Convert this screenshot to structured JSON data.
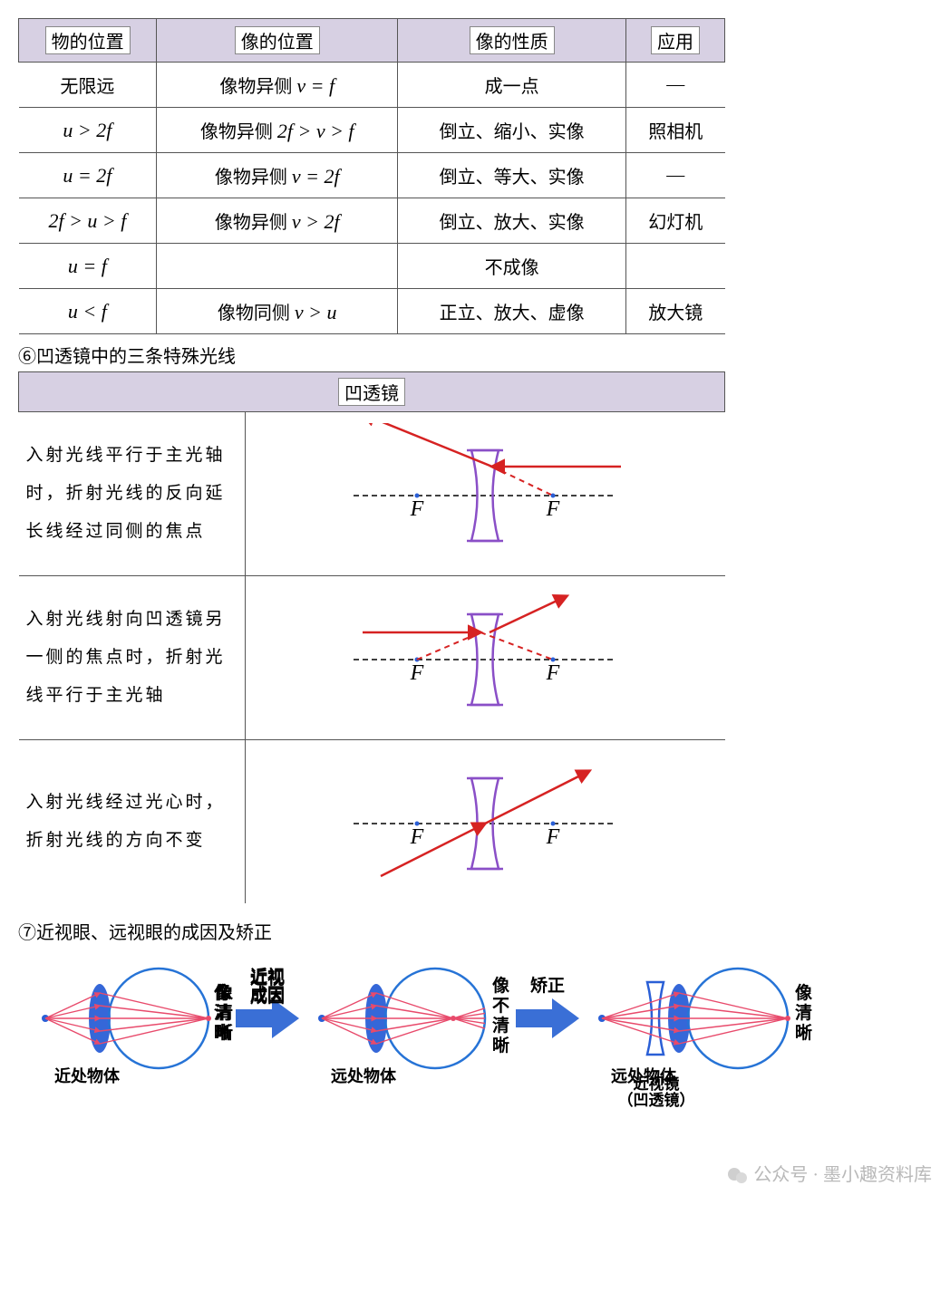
{
  "table1": {
    "headers": [
      "物的位置",
      "像的位置",
      "像的性质",
      "应用"
    ],
    "rows": [
      {
        "c1": "无限远",
        "c2_pre": "像物异侧 ",
        "c2_math": "v = f",
        "c3": "成一点",
        "c4": "—"
      },
      {
        "c1_math": "u > 2f",
        "c2_pre": "像物异侧 ",
        "c2_math": "2f > v > f",
        "c3": "倒立、缩小、实像",
        "c4": "照相机"
      },
      {
        "c1_math": "u = 2f",
        "c2_pre": "像物异侧 ",
        "c2_math": "v = 2f",
        "c3": "倒立、等大、实像",
        "c4": "—"
      },
      {
        "c1_math": "2f > u > f",
        "c2_pre": "像物异侧 ",
        "c2_math": "v > 2f",
        "c3": "倒立、放大、实像",
        "c4": "幻灯机"
      },
      {
        "c1_math": "u = f",
        "c2_pre": "",
        "c2_math": "",
        "c3": "不成像",
        "c4": ""
      },
      {
        "c1_math": "u < f",
        "c2_pre": "像物同侧 ",
        "c2_math": "v > u",
        "c3": "正立、放大、虚像",
        "c4": "放大镜"
      }
    ]
  },
  "sec6_label": "⑥凹透镜中的三条特殊光线",
  "table2": {
    "header": "凹透镜",
    "rows": [
      {
        "desc": "入射光线平行于主光轴时，折射光线的反向延长线经过同侧的焦点",
        "diag": "ray1"
      },
      {
        "desc": "入射光线射向凹透镜另一侧的焦点时，折射光线平行于主光轴",
        "diag": "ray2"
      },
      {
        "desc": "入射光线经过光心时，折射光线的方向不变",
        "diag": "ray3"
      }
    ],
    "colors": {
      "lens": "#8a4fc7",
      "axis": "#000000",
      "ray": "#d62222",
      "ray_dash": "#d62222",
      "F_label": "#000000",
      "F_dot": "#2a5fd6"
    }
  },
  "sec7_label": "⑦近视眼、远视眼的成因及矫正",
  "eye": {
    "colors": {
      "lens_fill": "#2a5fd6",
      "eye_outline": "#2673d6",
      "ray": "#e84a6b",
      "arrow_fill": "#3a6fd6",
      "text": "#000000",
      "corr_lens": "#2a5fd6"
    },
    "labels": {
      "near_obj": "近处物体",
      "far_obj": "远处物体",
      "clear": "像清晰",
      "unclear": "像不清晰",
      "cause": "近视成因",
      "correct": "矫正",
      "corr_lens": "近视镜（凹透镜）"
    }
  },
  "footer": "公众号 · 墨小趣资料库"
}
